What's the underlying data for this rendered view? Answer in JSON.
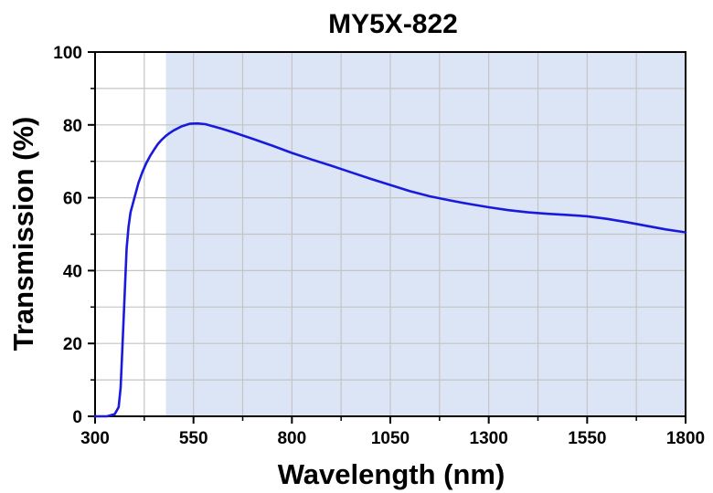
{
  "chart_data": {
    "type": "line",
    "title": "MY5X-822",
    "xlabel": "Wavelength (nm)",
    "ylabel": "Transmission (%)",
    "xlim": [
      300,
      1800
    ],
    "ylim": [
      0,
      100
    ],
    "x_ticks": [
      300,
      550,
      800,
      1050,
      1300,
      1550,
      1800
    ],
    "y_ticks": [
      0,
      20,
      40,
      60,
      80,
      100
    ],
    "grid": true,
    "legend": "none",
    "shaded_band": {
      "x_start": 480,
      "x_end": 1800,
      "color": "#dce5f6"
    },
    "series": [
      {
        "color": "#1a1adc",
        "x": [
          300,
          330,
          350,
          360,
          365,
          370,
          375,
          380,
          385,
          390,
          400,
          410,
          420,
          430,
          440,
          450,
          460,
          470,
          480,
          490,
          500,
          520,
          540,
          560,
          580,
          600,
          620,
          650,
          700,
          750,
          800,
          850,
          900,
          950,
          1000,
          1050,
          1100,
          1150,
          1200,
          1250,
          1300,
          1350,
          1400,
          1450,
          1500,
          1550,
          1600,
          1650,
          1700,
          1750,
          1800
        ],
        "values": [
          0,
          0,
          0.6,
          2.5,
          8,
          20,
          33,
          46,
          52,
          56,
          60,
          64,
          67,
          69.5,
          71.5,
          73.2,
          74.8,
          76,
          77,
          77.8,
          78.5,
          79.6,
          80.3,
          80.4,
          80.2,
          79.6,
          79,
          78,
          76.2,
          74.3,
          72.3,
          70.5,
          68.8,
          67,
          65.2,
          63.5,
          61.8,
          60.4,
          59.3,
          58.3,
          57.4,
          56.6,
          56,
          55.6,
          55.3,
          54.9,
          54.2,
          53.3,
          52.3,
          51.3,
          50.5
        ]
      }
    ]
  }
}
